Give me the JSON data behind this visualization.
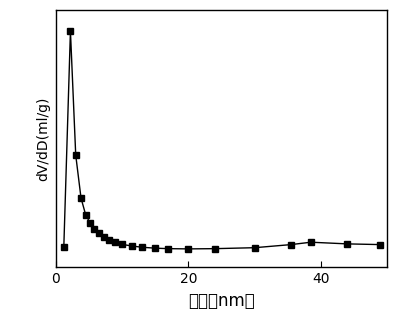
{
  "x": [
    1.2,
    2.2,
    3.0,
    3.8,
    4.5,
    5.2,
    5.8,
    6.5,
    7.2,
    8.0,
    9.0,
    10.0,
    11.5,
    13.0,
    15.0,
    17.0,
    20.0,
    24.0,
    30.0,
    35.5,
    38.5,
    44.0,
    49.0
  ],
  "y": [
    0.055,
    0.96,
    0.44,
    0.26,
    0.19,
    0.155,
    0.132,
    0.112,
    0.098,
    0.085,
    0.074,
    0.066,
    0.059,
    0.054,
    0.05,
    0.048,
    0.047,
    0.048,
    0.052,
    0.065,
    0.075,
    0.068,
    0.065
  ],
  "xlabel": "孔径（nm）",
  "ylabel": "dV/dD(ml/g)",
  "xlim": [
    0,
    50
  ],
  "ylim": [
    -0.03,
    1.05
  ],
  "marker": "s",
  "markersize": 5,
  "linecolor": "#000000",
  "linewidth": 1.0,
  "background_color": "#ffffff",
  "tick_color": "#000000",
  "xlabel_fontsize": 12,
  "ylabel_fontsize": 10,
  "xticks": [
    0,
    20,
    40
  ],
  "yticks": []
}
